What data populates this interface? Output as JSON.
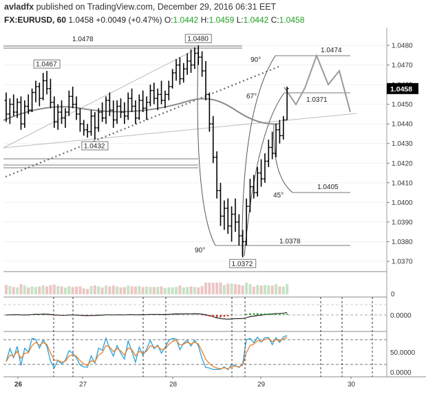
{
  "header": {
    "author": "avladfx",
    "published": "published on TradingView.com, December 29, 2016 06:31 EET",
    "symbol": "FX:EURUSD, 60",
    "last": "1.0458",
    "change": "+0.0049 (+0.47%)",
    "o_label": "O:",
    "o": "1.0442",
    "h_label": "H:",
    "h": "1.0459",
    "l_label": "L:",
    "l": "1.0442",
    "c_label": "C:",
    "c": "1.0458"
  },
  "chart_data": {
    "type": "ohlc",
    "y_ticks": [
      "1.0480",
      "1.0470",
      "1.0460",
      "1.0450",
      "1.0440",
      "1.0430",
      "1.0420",
      "1.0410",
      "1.0400",
      "1.0390",
      "1.0380",
      "1.0370"
    ],
    "y_range": [
      1.0364,
      1.0488
    ],
    "x_ticks": [
      {
        "label": "26",
        "x": 26,
        "bold": true
      },
      {
        "label": "27",
        "x": 120,
        "bold": false
      },
      {
        "label": "28",
        "x": 251,
        "bold": false
      },
      {
        "label": "29",
        "x": 379,
        "bold": false
      },
      {
        "label": "30",
        "x": 510,
        "bold": false
      }
    ],
    "last_price_label": "1.0458",
    "levels": [
      "1.0478",
      "1.0474",
      "1.0371",
      "1.0405",
      "1.0378"
    ],
    "bar_labels": [
      {
        "text": "1.0467",
        "bar": 11
      },
      {
        "text": "1.0432",
        "bar": 24
      },
      {
        "text": "1.0480",
        "bar": 52
      },
      {
        "text": "1.0372",
        "bar": 64
      }
    ],
    "angle_labels": [
      "90°",
      "67°",
      "45°",
      "90°"
    ],
    "volume_tick": "0",
    "osc1_tick": "0.0000",
    "osc2_ticks": [
      "50.0000",
      "0.0000"
    ],
    "bars": [
      [
        1.0452,
        1.0456,
        1.0441,
        1.0445
      ],
      [
        1.0445,
        1.0453,
        1.044,
        1.045
      ],
      [
        1.045,
        1.0455,
        1.0444,
        1.0446
      ],
      [
        1.0446,
        1.0453,
        1.0443,
        1.0451
      ],
      [
        1.0451,
        1.0454,
        1.0437,
        1.044
      ],
      [
        1.044,
        1.0452,
        1.0438,
        1.0449
      ],
      [
        1.0449,
        1.0455,
        1.0445,
        1.0447
      ],
      [
        1.0447,
        1.0458,
        1.0446,
        1.0456
      ],
      [
        1.0456,
        1.0462,
        1.0451,
        1.0459
      ],
      [
        1.0459,
        1.0461,
        1.0449,
        1.0453
      ],
      [
        1.0453,
        1.0466,
        1.0452,
        1.0462
      ],
      [
        1.0462,
        1.0467,
        1.0455,
        1.0458
      ],
      [
        1.0458,
        1.0463,
        1.0448,
        1.0451
      ],
      [
        1.0451,
        1.0454,
        1.0438,
        1.0441
      ],
      [
        1.0441,
        1.045,
        1.0437,
        1.0446
      ],
      [
        1.0446,
        1.0452,
        1.044,
        1.0443
      ],
      [
        1.0443,
        1.0448,
        1.0438,
        1.0446
      ],
      [
        1.0446,
        1.0457,
        1.0444,
        1.0454
      ],
      [
        1.0454,
        1.0459,
        1.0448,
        1.045
      ],
      [
        1.045,
        1.0454,
        1.0442,
        1.0445
      ],
      [
        1.0445,
        1.0448,
        1.0436,
        1.044
      ],
      [
        1.044,
        1.0442,
        1.0434,
        1.0437
      ],
      [
        1.0437,
        1.044,
        1.0433,
        1.0436
      ],
      [
        1.0436,
        1.0447,
        1.0434,
        1.0444
      ],
      [
        1.0444,
        1.0446,
        1.0432,
        1.0438
      ],
      [
        1.0438,
        1.0448,
        1.0436,
        1.0446
      ],
      [
        1.0446,
        1.0451,
        1.0441,
        1.0443
      ],
      [
        1.0443,
        1.0454,
        1.044,
        1.0452
      ],
      [
        1.0452,
        1.0456,
        1.0444,
        1.0447
      ],
      [
        1.0447,
        1.0452,
        1.0438,
        1.0442
      ],
      [
        1.0442,
        1.0452,
        1.044,
        1.0449
      ],
      [
        1.0449,
        1.0453,
        1.0443,
        1.0446
      ],
      [
        1.0446,
        1.0451,
        1.044,
        1.0444
      ],
      [
        1.0444,
        1.0456,
        1.0442,
        1.0453
      ],
      [
        1.0453,
        1.0458,
        1.0446,
        1.0449
      ],
      [
        1.0449,
        1.0452,
        1.044,
        1.0443
      ],
      [
        1.0443,
        1.0455,
        1.0442,
        1.0452
      ],
      [
        1.0452,
        1.0457,
        1.0446,
        1.0448
      ],
      [
        1.0448,
        1.0454,
        1.0442,
        1.0451
      ],
      [
        1.0451,
        1.046,
        1.0449,
        1.0457
      ],
      [
        1.0457,
        1.0461,
        1.045,
        1.0453
      ],
      [
        1.0453,
        1.0458,
        1.0447,
        1.0455
      ],
      [
        1.0455,
        1.0462,
        1.045,
        1.0452
      ],
      [
        1.0452,
        1.0457,
        1.0448,
        1.0455
      ],
      [
        1.0455,
        1.0462,
        1.0452,
        1.0459
      ],
      [
        1.0459,
        1.0468,
        1.0458,
        1.0466
      ],
      [
        1.0466,
        1.0473,
        1.0462,
        1.047
      ],
      [
        1.047,
        1.0474,
        1.046,
        1.0463
      ],
      [
        1.0463,
        1.0471,
        1.0461,
        1.0468
      ],
      [
        1.0468,
        1.0476,
        1.0465,
        1.0472
      ],
      [
        1.0472,
        1.0478,
        1.0466,
        1.047
      ],
      [
        1.047,
        1.0479,
        1.0468,
        1.0476
      ],
      [
        1.0476,
        1.048,
        1.047,
        1.0474
      ],
      [
        1.0474,
        1.0477,
        1.0464,
        1.0467
      ],
      [
        1.0467,
        1.0472,
        1.0452,
        1.0455
      ],
      [
        1.0455,
        1.0456,
        1.0436,
        1.044
      ],
      [
        1.044,
        1.0444,
        1.042,
        1.0423
      ],
      [
        1.0423,
        1.0426,
        1.0402,
        1.0406
      ],
      [
        1.0406,
        1.041,
        1.0388,
        1.0393
      ],
      [
        1.0393,
        1.0401,
        1.0386,
        1.0397
      ],
      [
        1.0397,
        1.0402,
        1.0384,
        1.0388
      ],
      [
        1.0388,
        1.0398,
        1.038,
        1.0394
      ],
      [
        1.0394,
        1.0402,
        1.0385,
        1.039
      ],
      [
        1.039,
        1.0394,
        1.0378,
        1.0383
      ],
      [
        1.0383,
        1.0386,
        1.0372,
        1.038
      ],
      [
        1.038,
        1.0402,
        1.0378,
        1.0398
      ],
      [
        1.0398,
        1.0412,
        1.0395,
        1.0408
      ],
      [
        1.0408,
        1.0414,
        1.0402,
        1.0405
      ],
      [
        1.0405,
        1.0418,
        1.0403,
        1.0415
      ],
      [
        1.0415,
        1.0422,
        1.0408,
        1.0412
      ],
      [
        1.0412,
        1.0425,
        1.041,
        1.0421
      ],
      [
        1.0421,
        1.0432,
        1.0418,
        1.0428
      ],
      [
        1.0428,
        1.0436,
        1.0422,
        1.0425
      ],
      [
        1.0425,
        1.044,
        1.0423,
        1.0437
      ],
      [
        1.0437,
        1.0442,
        1.043,
        1.0434
      ],
      [
        1.0434,
        1.0444,
        1.0432,
        1.0442
      ],
      [
        1.0442,
        1.0459,
        1.0442,
        1.0458
      ]
    ]
  }
}
